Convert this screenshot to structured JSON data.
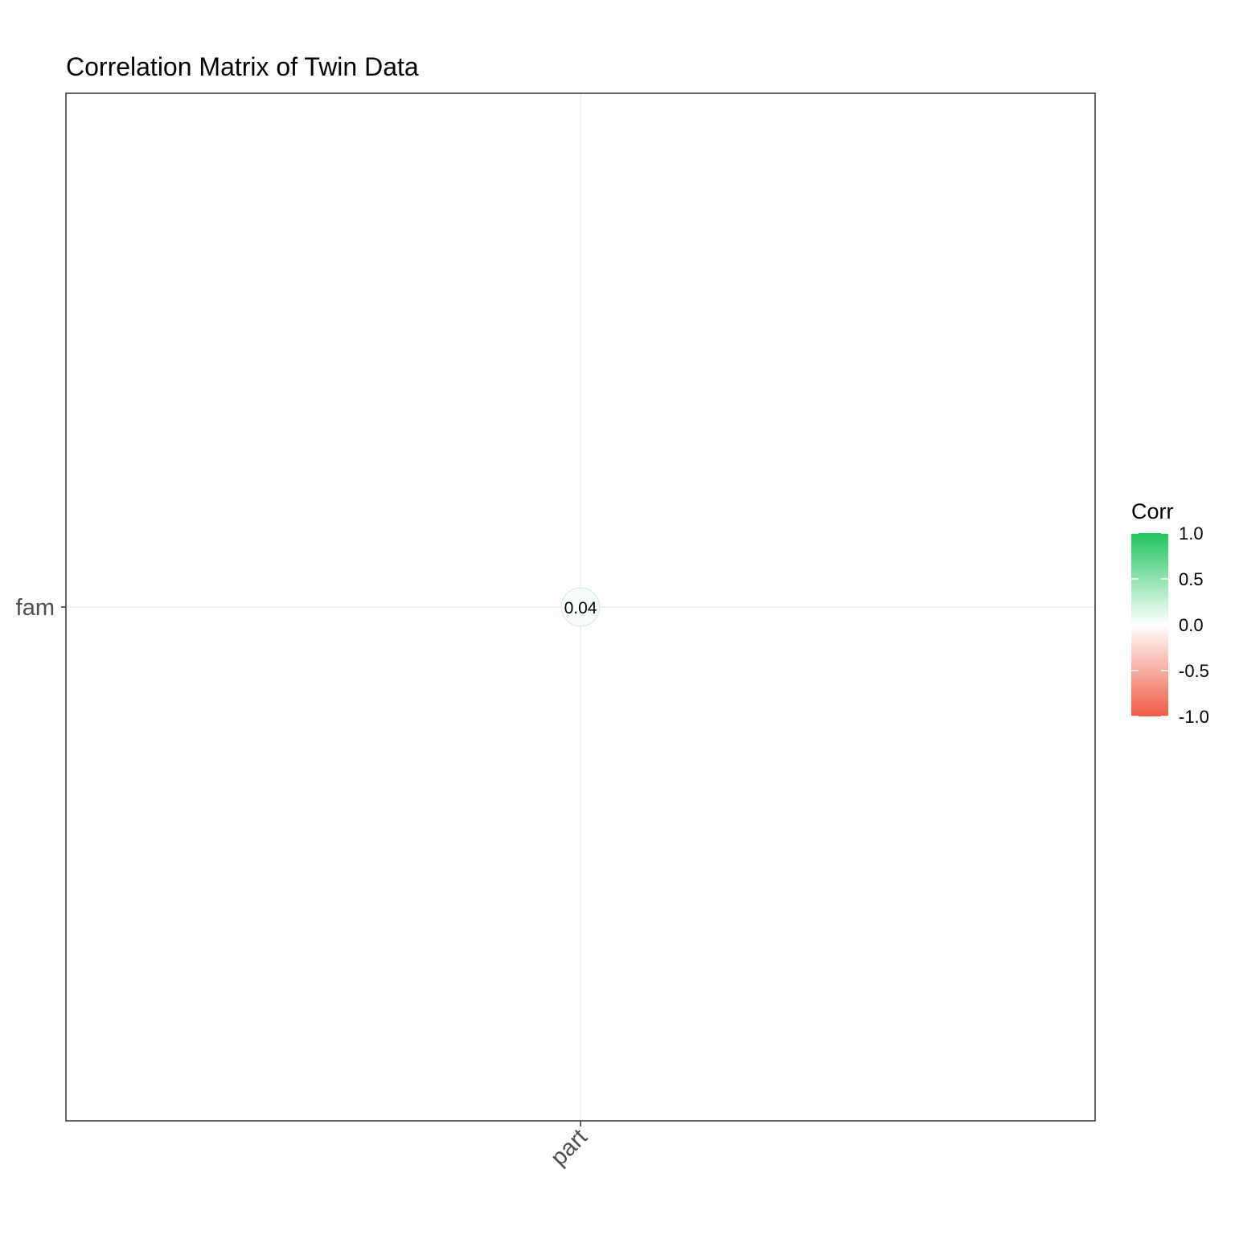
{
  "chart_data": {
    "type": "heatmap",
    "title": "Correlation Matrix of Twin Data",
    "x_categories": [
      "part"
    ],
    "y_categories": [
      "fam"
    ],
    "cells": [
      {
        "x": "part",
        "y": "fam",
        "value": 0.04,
        "label": "0.04"
      }
    ],
    "legend": {
      "title": "Corr",
      "position": "right",
      "range": [
        -1.0,
        1.0
      ],
      "ticks": [
        1.0,
        0.5,
        0.0,
        -0.5,
        -1.0
      ],
      "tick_labels": [
        "1.0",
        "0.5",
        "0.0",
        "-0.5",
        "-1.0"
      ],
      "colors": {
        "high": "#22c55e",
        "mid": "#ffffff",
        "low": "#f05a45"
      }
    },
    "grid": true
  }
}
